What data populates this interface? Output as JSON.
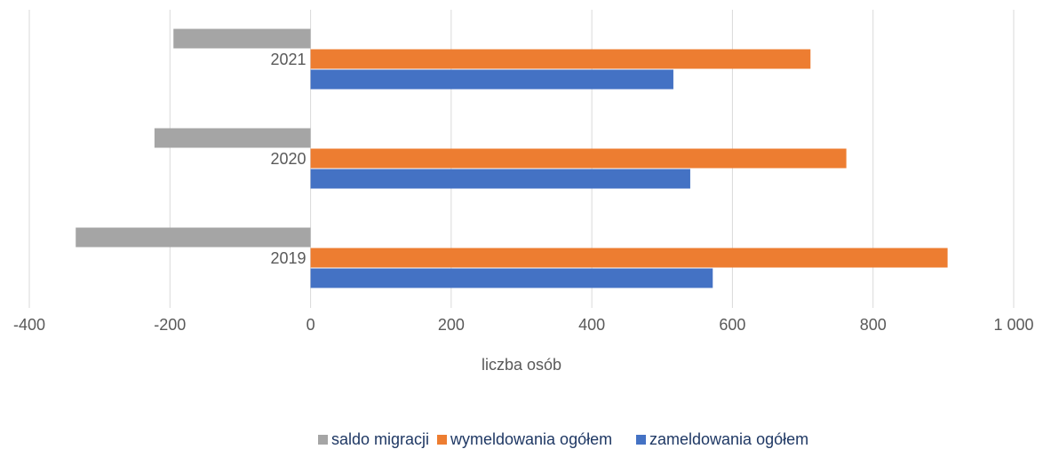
{
  "chart_data": {
    "type": "barh",
    "categories": [
      "2019",
      "2020",
      "2021"
    ],
    "series": [
      {
        "name": "saldo migracji",
        "color": "#a5a5a5",
        "values": [
          -334,
          -222,
          -195
        ]
      },
      {
        "name": "wymeldowania ogółem",
        "color": "#ed7d31",
        "values": [
          906,
          762,
          711
        ]
      },
      {
        "name": "zameldowania ogółem",
        "color": "#4472c4",
        "values": [
          572,
          540,
          516
        ]
      }
    ],
    "xlabel": "liczba osób",
    "xlim": [
      -400,
      1000
    ],
    "xticks": [
      -400,
      -200,
      0,
      200,
      400,
      600,
      800,
      {
        "value": 1000,
        "label": "1 000"
      }
    ],
    "grid": true,
    "legend": "bottom"
  }
}
